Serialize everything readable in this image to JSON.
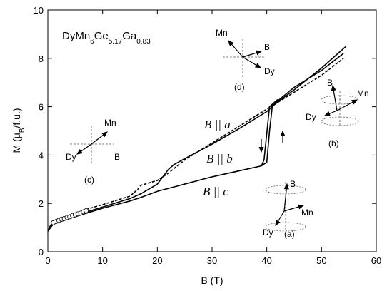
{
  "chart_data": {
    "type": "line",
    "title_parts": [
      "DyMn",
      "6",
      "Ge",
      "5.17",
      "Ga",
      "0.83"
    ],
    "xlabel": "B (T)",
    "ylabel_parts": [
      "M (μ",
      "B",
      "/f.u.)"
    ],
    "xlim": [
      0,
      60
    ],
    "xticks": [
      0,
      10,
      20,
      30,
      40,
      50,
      60
    ],
    "ylim": [
      0,
      10
    ],
    "yticks": [
      0,
      2,
      4,
      6,
      8,
      10
    ],
    "color": "#000000",
    "curves": [
      {
        "style": "solid",
        "x": [
          0,
          0.5,
          2,
          5,
          10,
          15,
          17,
          20,
          21,
          22,
          23,
          25,
          30,
          35,
          40,
          42,
          45,
          50,
          54.5
        ],
        "y": [
          0.85,
          1.1,
          1.3,
          1.5,
          1.85,
          2.2,
          2.4,
          2.8,
          3.1,
          3.4,
          3.6,
          3.85,
          4.45,
          5.1,
          5.8,
          6.2,
          6.7,
          7.6,
          8.5
        ]
      },
      {
        "style": "dashed",
        "x": [
          7,
          10,
          15,
          16.5,
          17,
          20,
          22,
          25,
          30,
          35,
          40,
          45,
          50,
          54
        ],
        "y": [
          1.75,
          1.95,
          2.3,
          2.6,
          2.75,
          2.95,
          3.25,
          3.8,
          4.5,
          5.2,
          5.9,
          6.6,
          7.3,
          8.0
        ]
      },
      {
        "style": "solid",
        "x": [
          0,
          1,
          5,
          10,
          15,
          17,
          20,
          25,
          30,
          35,
          39,
          40,
          40.5,
          41,
          41.5,
          45,
          50,
          54
        ],
        "y": [
          0.85,
          1.15,
          1.45,
          1.8,
          2.1,
          2.25,
          2.5,
          2.8,
          3.1,
          3.35,
          3.55,
          3.7,
          5.0,
          6.0,
          6.15,
          6.8,
          7.5,
          8.2
        ]
      },
      {
        "style": "solid",
        "x": [
          42,
          40.5,
          39.5,
          39
        ],
        "y": [
          6.3,
          6.0,
          3.8,
          3.55
        ]
      }
    ],
    "points": {
      "x": [
        1,
        1.5,
        2,
        2.5,
        3,
        3.5,
        4,
        4.5,
        5,
        5.5,
        6,
        6.5,
        7
      ],
      "y": [
        1.2,
        1.25,
        1.3,
        1.35,
        1.38,
        1.42,
        1.45,
        1.5,
        1.53,
        1.57,
        1.6,
        1.65,
        1.7
      ]
    },
    "annotations": [
      "B || a",
      "B || b",
      "B || c"
    ],
    "insets": [
      {
        "label": "(d)",
        "texts": [
          "Mn",
          "B",
          "Dy"
        ]
      },
      {
        "label": "(b)",
        "texts": [
          "B",
          "Mn",
          "Dy"
        ]
      },
      {
        "label": "(c)",
        "texts": [
          "Mn",
          "Dy",
          "B"
        ]
      },
      {
        "label": "(a)",
        "texts": [
          "B",
          "Mn",
          "Dy"
        ]
      }
    ]
  }
}
